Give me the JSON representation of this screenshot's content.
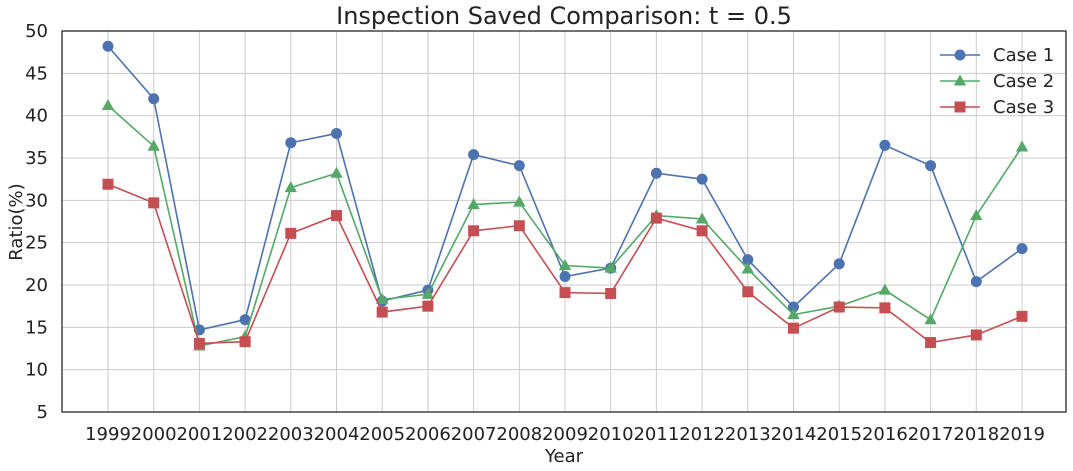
{
  "chart_data": {
    "type": "line",
    "title": "Inspection Saved Comparison: t = 0.5",
    "xlabel": "Year",
    "ylabel": "Ratio(%)",
    "ylim": [
      5,
      50
    ],
    "yticks": [
      "5",
      "10",
      "15",
      "20",
      "25",
      "30",
      "35",
      "40",
      "45",
      "50"
    ],
    "grid": true,
    "legend_position": "top-right",
    "categories": [
      "1999",
      "2000",
      "2001",
      "2002",
      "2003",
      "2004",
      "2005",
      "2006",
      "2007",
      "2008",
      "2009",
      "2010",
      "2011",
      "2012",
      "2013",
      "2014",
      "2015",
      "2016",
      "2017",
      "2018",
      "2019"
    ],
    "series": [
      {
        "name": "Case 1",
        "color": "#4c72b0",
        "marker": "circle",
        "values": [
          48.2,
          42.0,
          14.7,
          15.9,
          36.8,
          37.9,
          18.1,
          19.4,
          35.4,
          34.1,
          21.0,
          22.0,
          33.2,
          32.5,
          23.0,
          17.4,
          22.5,
          36.5,
          34.1,
          20.4,
          24.3
        ]
      },
      {
        "name": "Case 2",
        "color": "#55a868",
        "marker": "triangle",
        "values": [
          41.2,
          36.4,
          12.8,
          13.9,
          31.5,
          33.2,
          18.3,
          18.9,
          29.5,
          29.8,
          22.3,
          22.0,
          28.2,
          27.8,
          21.9,
          16.5,
          17.5,
          19.4,
          15.9,
          28.2,
          36.3
        ]
      },
      {
        "name": "Case 3",
        "color": "#c44e52",
        "marker": "square",
        "values": [
          31.9,
          29.7,
          13.1,
          13.3,
          26.1,
          28.2,
          16.8,
          17.5,
          26.4,
          27.0,
          19.1,
          19.0,
          27.9,
          26.4,
          19.2,
          14.9,
          17.4,
          17.3,
          13.2,
          14.1,
          16.3
        ]
      }
    ]
  }
}
